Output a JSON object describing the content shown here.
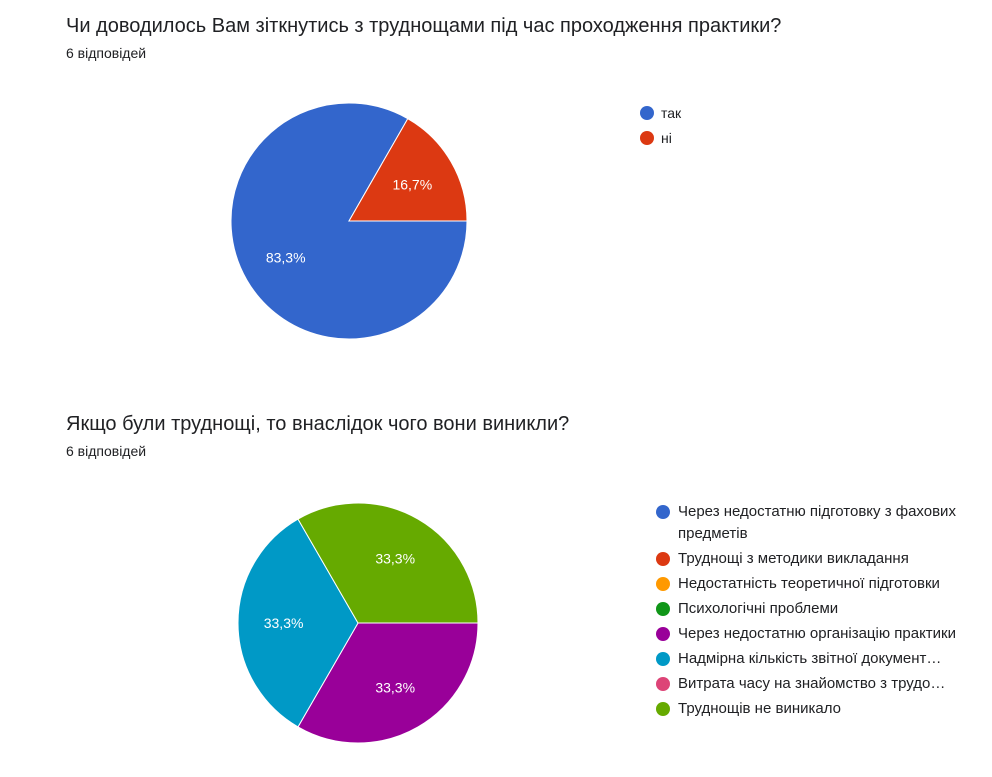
{
  "questions": [
    {
      "title": "Чи доводилось Вам зіткнутись з труднощами під час проходження практики?",
      "responses": "6 відповідей"
    },
    {
      "title": "Якщо були труднощі, то внаслідок чого вони виникли?",
      "responses": "6 відповідей"
    }
  ],
  "chart_data": [
    {
      "type": "pie",
      "categories": [
        "так",
        "ні"
      ],
      "values": [
        83.3,
        16.7
      ],
      "value_labels": [
        "83,3%",
        "16,7%"
      ],
      "colors": [
        "#3366cc",
        "#dc3912"
      ],
      "legend_position": "right"
    },
    {
      "type": "pie",
      "categories": [
        "Через недостатню підготовку з фахових предметів",
        "Труднощі з методики викладання",
        "Недостатність теоретичної підготовки",
        "Психологічні проблеми",
        "Через недостатню організацію практики",
        "Надмірна кількість звітної документ…",
        "Витрата часу на знайомство з трудо…",
        "Труднощів не виникало"
      ],
      "values": [
        0,
        0,
        0,
        0,
        33.3,
        33.3,
        0,
        33.3
      ],
      "value_labels": [
        "",
        "",
        "",
        "",
        "33,3%",
        "33,3%",
        "",
        "33,3%"
      ],
      "colors": [
        "#3366cc",
        "#dc3912",
        "#ff9900",
        "#109618",
        "#990099",
        "#0099c6",
        "#dd4477",
        "#66aa00"
      ],
      "legend_position": "right"
    }
  ]
}
